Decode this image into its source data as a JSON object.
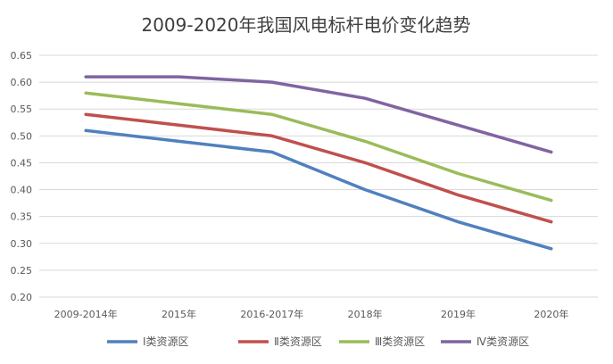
{
  "chart_data": {
    "type": "line",
    "title": "2009-2020年我国风电标杆电价变化趋势",
    "xlabel": "",
    "ylabel": "",
    "categories": [
      "2009-2014年",
      "2015年",
      "2016-2017年",
      "2018年",
      "2019年",
      "2020年"
    ],
    "ylim": [
      0.2,
      0.65
    ],
    "yticks": [
      "0.65",
      "0.60",
      "0.55",
      "0.50",
      "0.45",
      "0.40",
      "0.35",
      "0.30",
      "0.25",
      "0.20"
    ],
    "grid": true,
    "legend": "bottom",
    "series": [
      {
        "name": "Ⅰ类资源区",
        "color": "#4f81bd",
        "values": [
          0.51,
          0.49,
          0.47,
          0.4,
          0.34,
          0.29
        ]
      },
      {
        "name": "Ⅱ类资源区",
        "color": "#c0504d",
        "values": [
          0.54,
          0.52,
          0.5,
          0.45,
          0.39,
          0.34
        ]
      },
      {
        "name": "Ⅲ类资源区",
        "color": "#9bbb59",
        "values": [
          0.58,
          0.56,
          0.54,
          0.49,
          0.43,
          0.38
        ]
      },
      {
        "name": "Ⅳ类资源区",
        "color": "#8064a2",
        "values": [
          0.61,
          0.61,
          0.6,
          0.57,
          0.52,
          0.47
        ]
      }
    ]
  }
}
